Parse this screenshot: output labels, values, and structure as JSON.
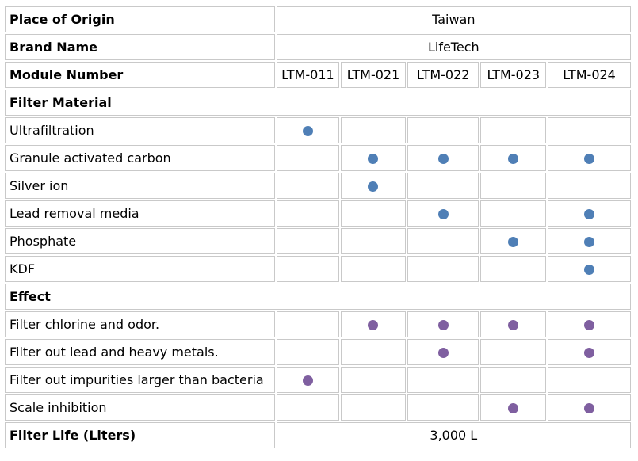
{
  "place_of_origin": {
    "label": "Place of Origin",
    "value": "Taiwan"
  },
  "brand_name": {
    "label": "Brand Name",
    "value": "LifeTech"
  },
  "module_number": {
    "label": "Module Number",
    "models": [
      "LTM-011",
      "LTM-021",
      "LTM-022",
      "LTM-023",
      "LTM-024"
    ]
  },
  "filter_material": {
    "heading": "Filter Material",
    "dot_color": "#4f7fb6",
    "rows": [
      {
        "label": "Ultrafiltration",
        "marks": [
          true,
          false,
          false,
          false,
          false
        ]
      },
      {
        "label": "Granule activated carbon",
        "marks": [
          false,
          true,
          true,
          true,
          true
        ]
      },
      {
        "label": "Silver ion",
        "marks": [
          false,
          true,
          false,
          false,
          false
        ]
      },
      {
        "label": "Lead removal media",
        "marks": [
          false,
          false,
          true,
          false,
          true
        ]
      },
      {
        "label": "Phosphate",
        "marks": [
          false,
          false,
          false,
          true,
          true
        ]
      },
      {
        "label": "KDF",
        "marks": [
          false,
          false,
          false,
          false,
          true
        ]
      }
    ]
  },
  "effect": {
    "heading": "Effect",
    "dot_color": "#7f5fa0",
    "rows": [
      {
        "label": "Filter chlorine and odor.",
        "marks": [
          false,
          true,
          true,
          true,
          true
        ]
      },
      {
        "label": "Filter out lead and heavy metals.",
        "marks": [
          false,
          false,
          true,
          false,
          true
        ]
      },
      {
        "label": "Filter out impurities larger than bacteria",
        "marks": [
          true,
          false,
          false,
          false,
          false
        ]
      },
      {
        "label": "Scale inhibition",
        "marks": [
          false,
          false,
          false,
          true,
          true
        ]
      }
    ]
  },
  "filter_life": {
    "label": "Filter Life (Liters)",
    "value": "3,000 L"
  }
}
